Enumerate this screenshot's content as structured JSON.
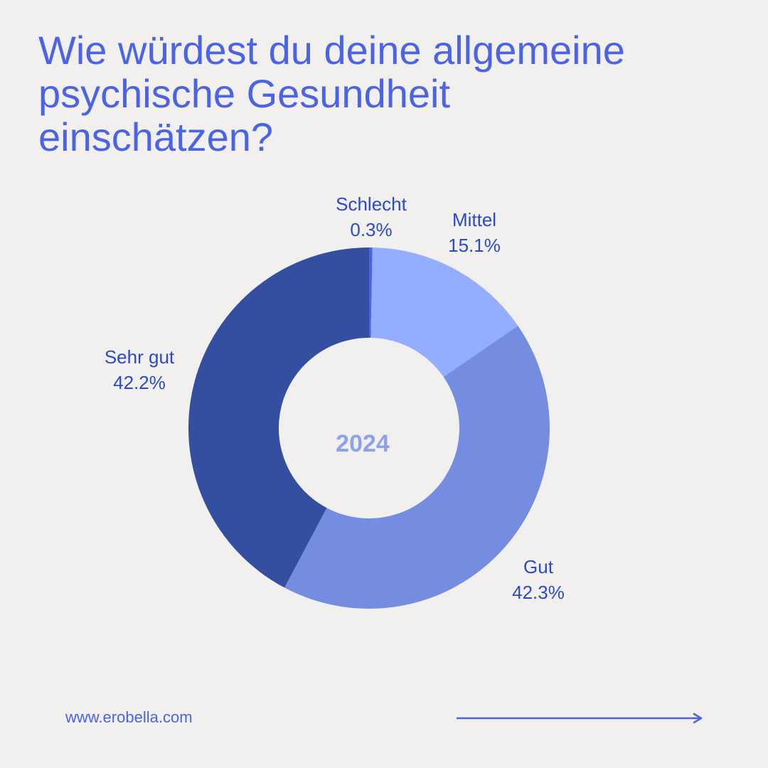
{
  "title_lines": [
    "Wie würdest du deine allgemeine",
    "psychische Gesundheit",
    "einschätzen?"
  ],
  "chart_data": {
    "type": "pie",
    "donut": true,
    "center_label": "2024",
    "categories": [
      "Schlecht",
      "Mittel",
      "Gut",
      "Sehr gut"
    ],
    "values": [
      0.3,
      15.1,
      42.3,
      42.2
    ],
    "value_labels": [
      "0.3%",
      "15.1%",
      "42.3%",
      "42.2%"
    ],
    "colors": [
      "#4A64E5",
      "#94AEFF",
      "#748DE0",
      "#344F9F"
    ],
    "legend": "none"
  },
  "colors": {
    "background": "#F1F0EE",
    "accent": "#4A64E5",
    "label": "#2B4AC8",
    "center_label": "#8EA2EA"
  },
  "footer": {
    "url": "www.erobella.com",
    "arrow_icon": "arrow-right-icon"
  }
}
